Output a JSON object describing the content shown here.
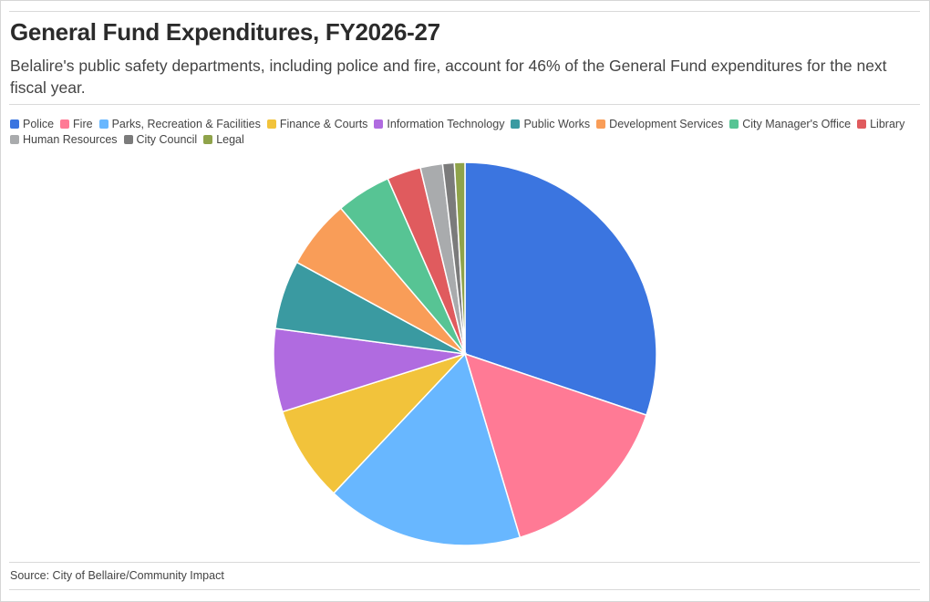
{
  "chart_data": {
    "type": "pie",
    "title": "General Fund Expenditures, FY2026-27",
    "subtitle": "Belalire's public safety departments, including police and fire, account for 46% of the General Fund expenditures for the next fiscal year.",
    "legend_position": "top",
    "series": [
      {
        "name": "Police",
        "value": 30.6,
        "color": "#3b75e0"
      },
      {
        "name": "Fire",
        "value": 15.4,
        "color": "#ff7a95"
      },
      {
        "name": "Parks, Recreation & Facilities",
        "value": 16.9,
        "color": "#68b7ff"
      },
      {
        "name": "Finance & Courts",
        "value": 8.2,
        "color": "#f2c33b"
      },
      {
        "name": "Information Technology",
        "value": 7.1,
        "color": "#b06be0"
      },
      {
        "name": "Public Works",
        "value": 5.9,
        "color": "#3a9aa1"
      },
      {
        "name": "Development Services",
        "value": 5.9,
        "color": "#f99d58"
      },
      {
        "name": "City Manager's Office",
        "value": 4.7,
        "color": "#57c494"
      },
      {
        "name": "Library",
        "value": 2.9,
        "color": "#e05b5e"
      },
      {
        "name": "Human Resources",
        "value": 1.9,
        "color": "#a9abad"
      },
      {
        "name": "City Council",
        "value": 1.0,
        "color": "#7b7b7b"
      },
      {
        "name": "Legal",
        "value": 0.9,
        "color": "#8fa34a"
      }
    ]
  },
  "source": "Source: City of Bellaire/Community Impact"
}
